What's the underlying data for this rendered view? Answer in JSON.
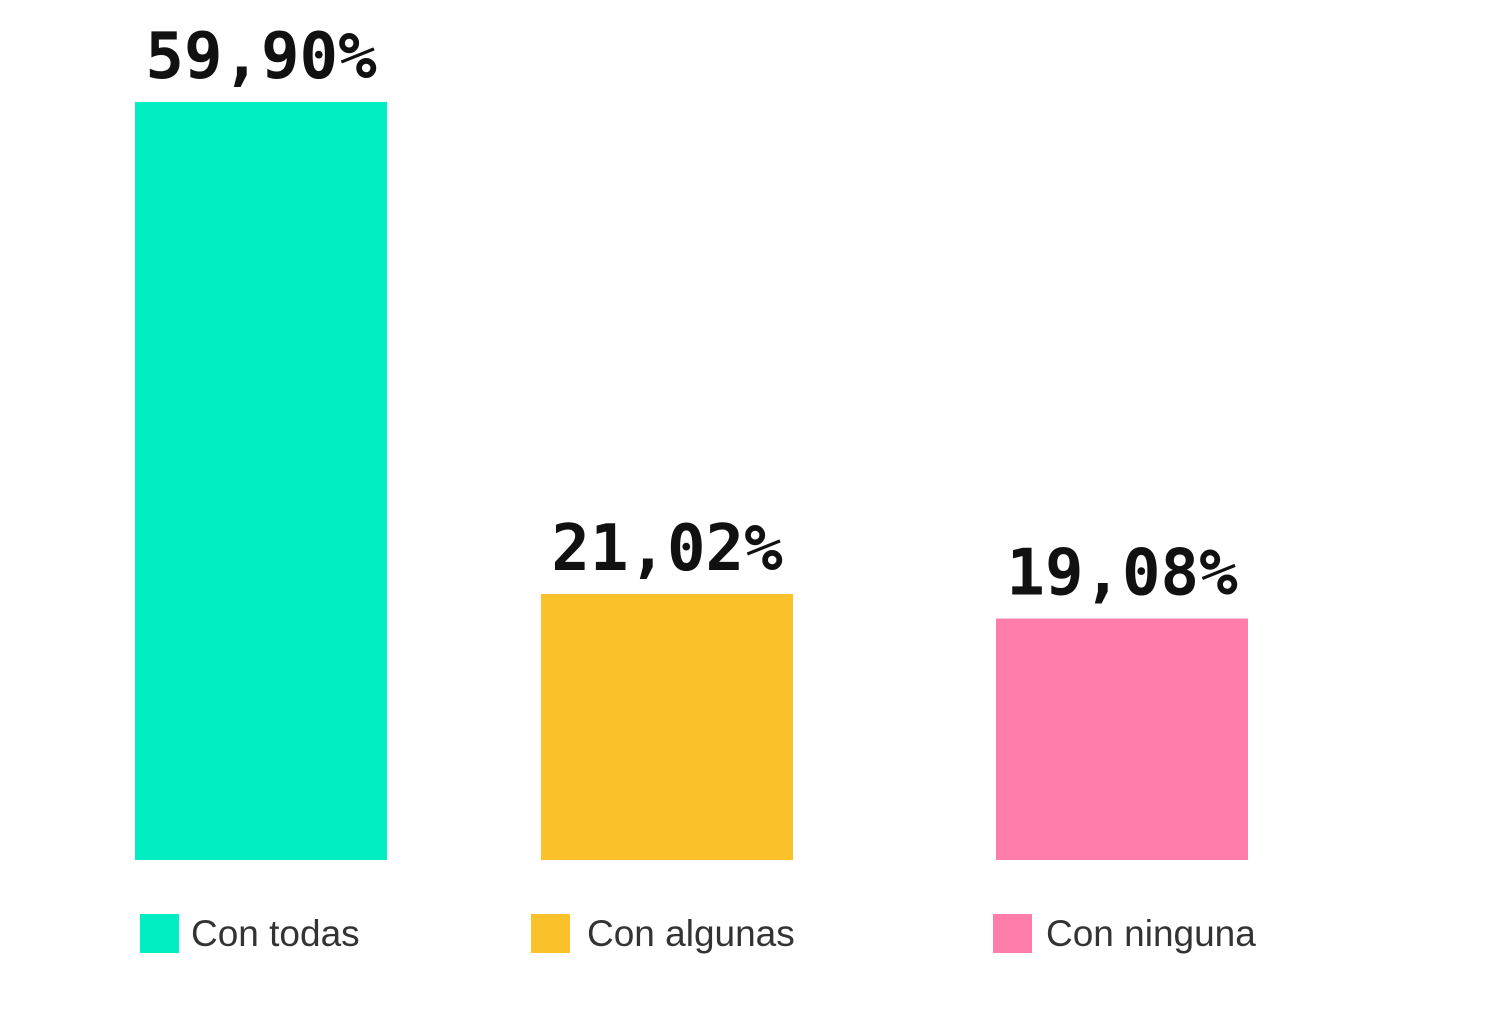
{
  "chart_data": {
    "type": "bar",
    "categories": [
      "Con todas",
      "Con algunas",
      "Con ninguna"
    ],
    "values": [
      59.9,
      21.02,
      19.08
    ],
    "value_labels": [
      "59,90%",
      "21,02%",
      "19,08%"
    ],
    "colors": [
      "#00EEC1",
      "#FBC12A",
      "#FF7DAB"
    ],
    "title": "",
    "xlabel": "",
    "ylabel": "",
    "ylim": [
      0,
      59.9
    ],
    "grid": false,
    "legend": "bottom"
  }
}
